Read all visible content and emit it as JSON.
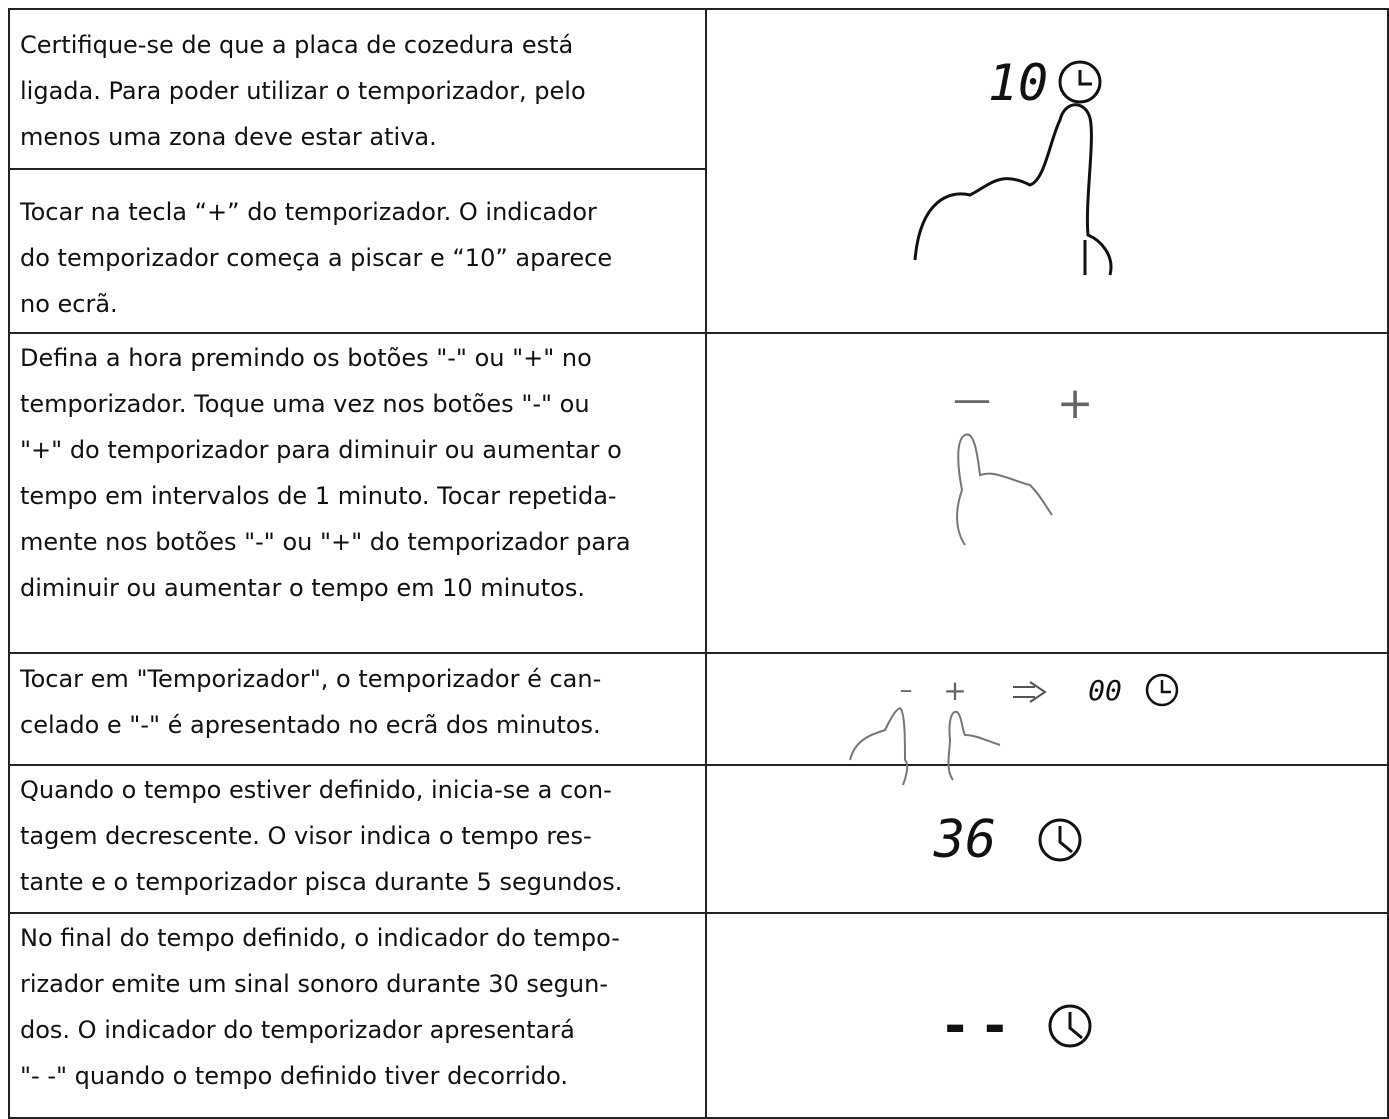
{
  "rows": [
    {
      "lines": [
        "Certifique-se de que a placa de cozedura está",
        "ligada.  Para poder utilizar o temporizador, pelo",
        "menos uma zona deve estar ativa."
      ]
    },
    {
      "lines": [
        "Tocar na tecla “+” do temporizador. O indicador",
        "do temporizador começa a piscar e “10” aparece",
        "no ecrã."
      ]
    },
    {
      "lines": [
        "Defina a hora premindo os botões \"-\" ou \"+\" no",
        "temporizador. Toque uma vez nos botões \"-\" ou",
        "\"+\" do temporizador para diminuir ou aumentar o",
        "tempo em intervalos de 1 minuto. Tocar repetida-",
        "mente nos botões \"-\" ou \"+\" do temporizador para",
        "diminuir ou aumentar o tempo em 10 minutos."
      ]
    },
    {
      "lines": [
        "Tocar em \"Temporizador\", o temporizador é can-",
        "celado e \"-\" é apresentado no ecrã dos minutos."
      ]
    },
    {
      "lines": [
        "Quando o tempo estiver definido, inicia-se a con-",
        "tagem decrescente. O visor indica o tempo res-",
        "tante e o temporizador pisca durante 5 segundos."
      ]
    },
    {
      "lines": [
        "No final do tempo definido, o indicador do tempo-",
        "rizador emite um sinal sonoro durante 30 segun-",
        "dos. O indicador do temporizador apresentará",
        "\"- -\" quando o tempo definido tiver decorrido."
      ]
    }
  ],
  "figures": [
    {
      "display": "10"
    },
    {
      "minus": "—",
      "plus": "+"
    },
    {
      "minus": "–",
      "plus": "+",
      "display": "00"
    },
    {
      "display": "36"
    },
    {
      "display": "- -"
    }
  ]
}
